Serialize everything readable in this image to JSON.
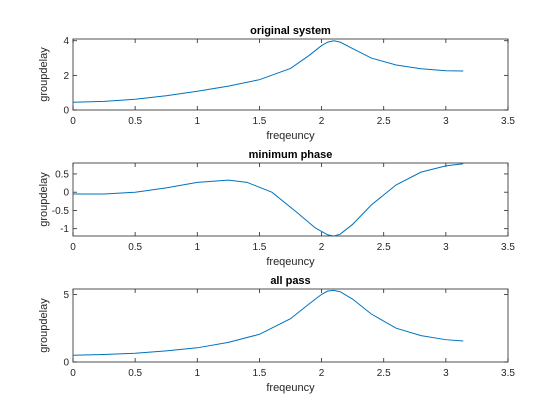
{
  "chart_data": [
    {
      "type": "line",
      "title": "original system",
      "xlabel": "freqeuncy",
      "ylabel": "groupdelay",
      "xlim": [
        0,
        3.5
      ],
      "ylim": [
        0,
        4.1
      ],
      "xticks": [
        "0",
        "0.5",
        "1",
        "1.5",
        "2",
        "2.5",
        "3",
        "3.5"
      ],
      "yticks": [
        "0",
        "2",
        "4"
      ],
      "grid": false,
      "series": [
        {
          "color": "#0072BD",
          "x": [
            0,
            0.25,
            0.5,
            0.75,
            1.0,
            1.25,
            1.5,
            1.75,
            1.9,
            2.0,
            2.05,
            2.1,
            2.15,
            2.25,
            2.4,
            2.6,
            2.8,
            3.0,
            3.14
          ],
          "y": [
            0.45,
            0.5,
            0.62,
            0.82,
            1.08,
            1.38,
            1.75,
            2.4,
            3.15,
            3.72,
            3.92,
            4.0,
            3.92,
            3.55,
            3.0,
            2.6,
            2.38,
            2.27,
            2.25
          ]
        }
      ]
    },
    {
      "type": "line",
      "title": "minimum phase",
      "xlabel": "freqeuncy",
      "ylabel": "groupdelay",
      "xlim": [
        0,
        3.5
      ],
      "ylim": [
        -1.2,
        0.8
      ],
      "xticks": [
        "0",
        "0.5",
        "1",
        "1.5",
        "2",
        "2.5",
        "3",
        "3.5"
      ],
      "yticks": [
        "-1",
        "-0.5",
        "0",
        "0.5"
      ],
      "grid": false,
      "series": [
        {
          "color": "#0072BD",
          "x": [
            0,
            0.25,
            0.5,
            0.75,
            1.0,
            1.25,
            1.4,
            1.6,
            1.8,
            1.95,
            2.05,
            2.1,
            2.15,
            2.25,
            2.4,
            2.6,
            2.8,
            3.0,
            3.14
          ],
          "y": [
            -0.05,
            -0.05,
            0.0,
            0.12,
            0.27,
            0.33,
            0.27,
            0.0,
            -0.55,
            -0.98,
            -1.17,
            -1.2,
            -1.15,
            -0.88,
            -0.35,
            0.2,
            0.55,
            0.72,
            0.78
          ]
        }
      ]
    },
    {
      "type": "line",
      "title": "all pass",
      "xlabel": "freqeuncy",
      "ylabel": "groupdelay",
      "xlim": [
        0,
        3.5
      ],
      "ylim": [
        0,
        5.4
      ],
      "xticks": [
        "0",
        "0.5",
        "1",
        "1.5",
        "2",
        "2.5",
        "3",
        "3.5"
      ],
      "yticks": [
        "0",
        "5"
      ],
      "grid": false,
      "series": [
        {
          "color": "#0072BD",
          "x": [
            0,
            0.25,
            0.5,
            0.75,
            1.0,
            1.25,
            1.5,
            1.75,
            1.9,
            2.0,
            2.05,
            2.1,
            2.15,
            2.25,
            2.4,
            2.6,
            2.8,
            3.0,
            3.14
          ],
          "y": [
            0.5,
            0.55,
            0.65,
            0.82,
            1.05,
            1.45,
            2.05,
            3.2,
            4.3,
            5.0,
            5.25,
            5.3,
            5.2,
            4.65,
            3.55,
            2.5,
            1.95,
            1.65,
            1.55
          ]
        }
      ]
    }
  ]
}
